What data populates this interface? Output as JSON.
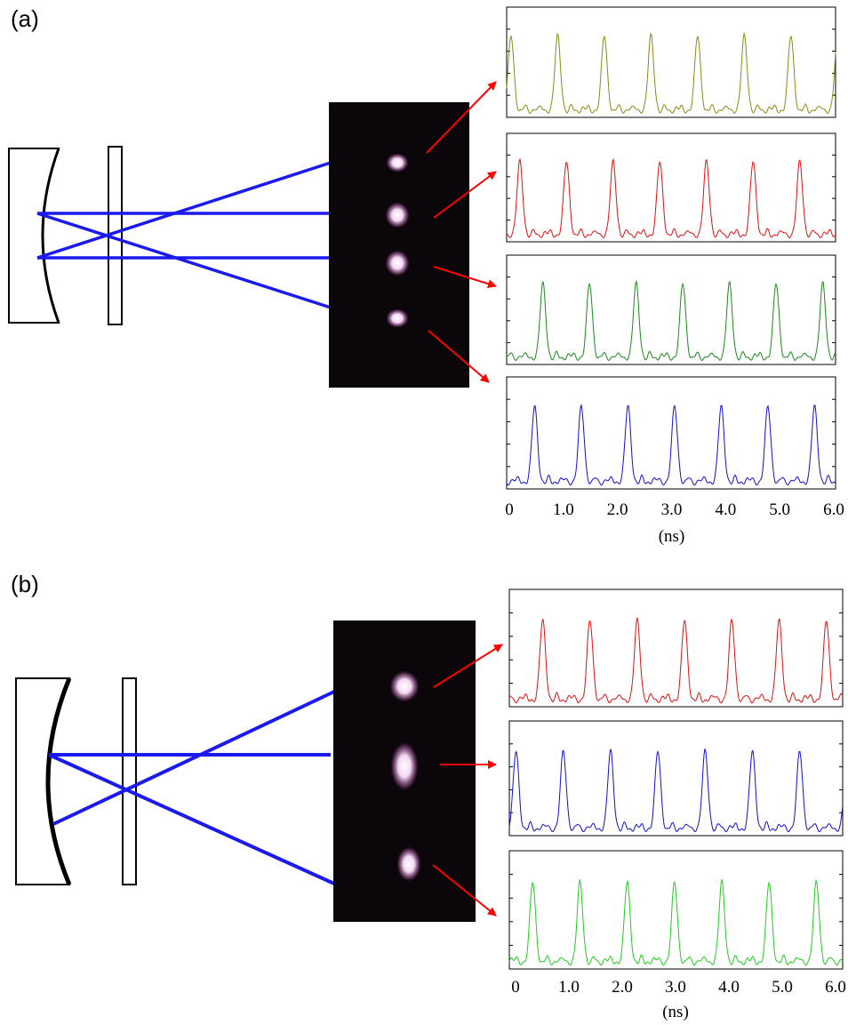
{
  "panels": [
    {
      "label": "(a)",
      "x_ticks": [
        "0",
        "1.0",
        "2.0",
        "3.0",
        "4.0",
        "5.0",
        "6.0"
      ],
      "x_unit": "(ns)"
    },
    {
      "label": "(b)",
      "x_ticks": [
        "0",
        "1.0",
        "2.0",
        "3.0",
        "4.0",
        "5.0",
        "6.0"
      ],
      "x_unit": "(ns)"
    }
  ]
}
